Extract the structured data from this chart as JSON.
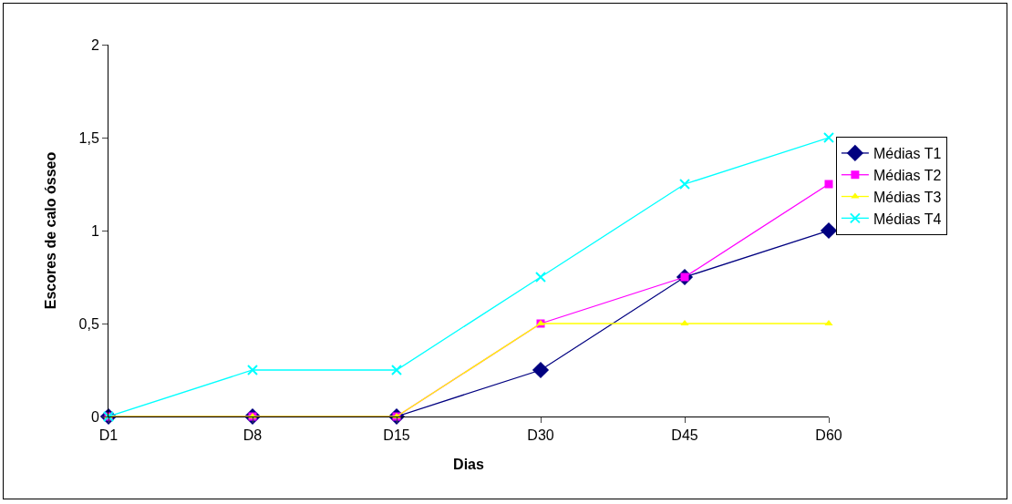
{
  "chart_data": {
    "type": "line",
    "xlabel": "Dias",
    "ylabel": "Escores de calo ósseo",
    "categories": [
      "D1",
      "D8",
      "D15",
      "D30",
      "D45",
      "D60"
    ],
    "series": [
      {
        "name": "Médias T1",
        "color": "#000080",
        "marker": "diamond",
        "values": [
          0,
          0,
          0,
          0.25,
          0.75,
          1
        ]
      },
      {
        "name": "Médias T2",
        "color": "#ff00ff",
        "marker": "square",
        "values": [
          0,
          0,
          0,
          0.5,
          0.75,
          1.25
        ]
      },
      {
        "name": "Médias T3",
        "color": "#ffff00",
        "marker": "triangle",
        "values": [
          0,
          0,
          0,
          0.5,
          0.5,
          0.5
        ]
      },
      {
        "name": "Médias T4",
        "color": "#00ffff",
        "marker": "cross",
        "values": [
          0,
          0.25,
          0.25,
          0.75,
          1.25,
          1.5
        ]
      }
    ],
    "ylim": [
      0,
      2
    ],
    "yticks": [
      {
        "value": 0,
        "label": "0"
      },
      {
        "value": 0.5,
        "label": "0,5"
      },
      {
        "value": 1,
        "label": "1"
      },
      {
        "value": 1.5,
        "label": "1,5"
      },
      {
        "value": 2,
        "label": "2"
      }
    ],
    "grid": false,
    "legend": "right"
  }
}
